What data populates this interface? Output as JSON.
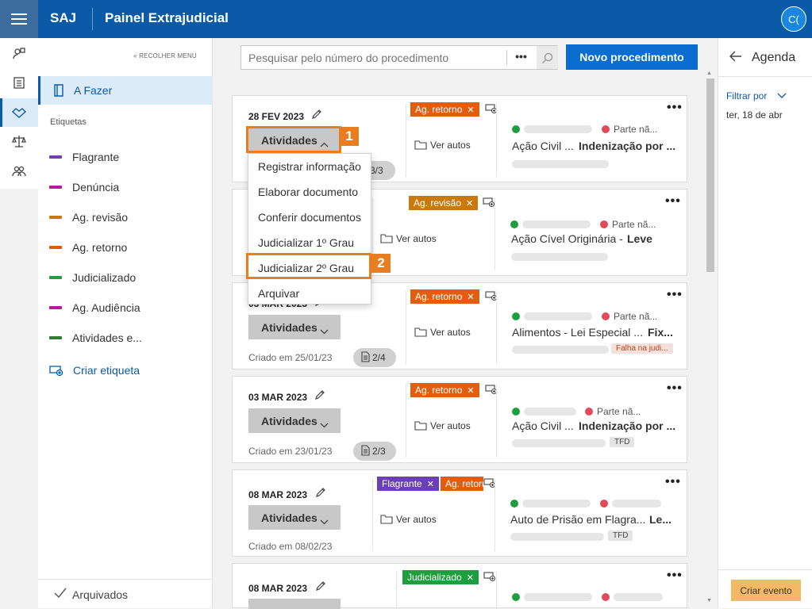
{
  "header": {
    "brand": "SAJ",
    "title": "Painel Extrajudicial",
    "avatar": "C("
  },
  "sidebar": {
    "collapse": "« RECOLHER MENU",
    "active": "A Fazer",
    "etiquetas_heading": "Etiquetas",
    "tags": [
      {
        "label": "Flagrante",
        "color": "#6b3fb5"
      },
      {
        "label": "Denúncia",
        "color": "#b5179e"
      },
      {
        "label": "Ag. revisão",
        "color": "#c9790d"
      },
      {
        "label": "Ag. retorno",
        "color": "#e35d0f"
      },
      {
        "label": "Judicializado",
        "color": "#1e9e3e"
      },
      {
        "label": "Ag. Audiência",
        "color": "#b5179e"
      },
      {
        "label": "Atividades e...",
        "color": "#2e7d32"
      }
    ],
    "criar_etiqueta": "Criar etiqueta",
    "arquivados": "Arquivados"
  },
  "search": {
    "placeholder": "Pesquisar pelo número do procedimento",
    "more": "•••"
  },
  "novo_button": "Novo procedimento",
  "activities_label": "Atividades",
  "ver_autos": "Ver autos",
  "more": "•••",
  "tag_colors": {
    "ag_retorno": "#e35d0f",
    "ag_revisao": "#c9790d",
    "flagrante": "#6b3fb5",
    "judicializado": "#1e9e3e"
  },
  "cards": [
    {
      "date": "28 FEV 2023",
      "created": "",
      "docs": "3/3",
      "tags": [
        "Ag. retorno"
      ],
      "parte_ativa": "",
      "parte_passiva": "Parte nã...",
      "classe": "Ação Civil ...",
      "assunto": "Indenização por ..."
    },
    {
      "date": "",
      "created": "",
      "docs": "",
      "tags": [
        "Ag. revisão"
      ],
      "parte_ativa": "",
      "parte_passiva": "Parte nã...",
      "classe": "Ação Cível Originária - ",
      "assunto": "Leve"
    },
    {
      "date": "03 MAR 2023",
      "created": "Criado em 25/01/23",
      "docs": "2/4",
      "tags": [
        "Ag. retorno"
      ],
      "parte_ativa": "",
      "parte_passiva": "Parte nã...",
      "classe": "Alimentos - Lei Especial ...",
      "assunto": "Fix...",
      "badge": "Falha na judi..."
    },
    {
      "date": "03 MAR 2023",
      "created": "Criado em 23/01/23",
      "docs": "2/3",
      "tags": [
        "Ag. retorno"
      ],
      "parte_ativa": "",
      "parte_passiva": "Parte nã...",
      "classe": "Ação Civil ...",
      "assunto": "Indenização por ...",
      "badge": "TFD"
    },
    {
      "date": "08 MAR 2023",
      "created": "Criado em 08/02/23",
      "docs": "",
      "tags": [
        "Flagrante",
        "Ag. retorno"
      ],
      "parte_ativa": "",
      "parte_passiva": "",
      "classe": "Auto de Prisão em Flagra...",
      "assunto": "Le...",
      "badge": "TFD"
    },
    {
      "date": "08 MAR 2023",
      "created": "",
      "docs": "",
      "tags": [
        "Judicializado"
      ],
      "parte_ativa": "",
      "parte_passiva": "",
      "classe": "",
      "assunto": ""
    }
  ],
  "menu": {
    "items": [
      "Registrar informação",
      "Elaborar documento",
      "Conferir documentos",
      "Judicializar 1º Grau",
      "Judicializar 2º Grau",
      "Arquivar"
    ]
  },
  "callouts": {
    "first": "1",
    "second": "2"
  },
  "agenda": {
    "title": "Agenda",
    "filter": "Filtrar por",
    "date": "ter, 18 de abr",
    "create": "Criar evento"
  }
}
